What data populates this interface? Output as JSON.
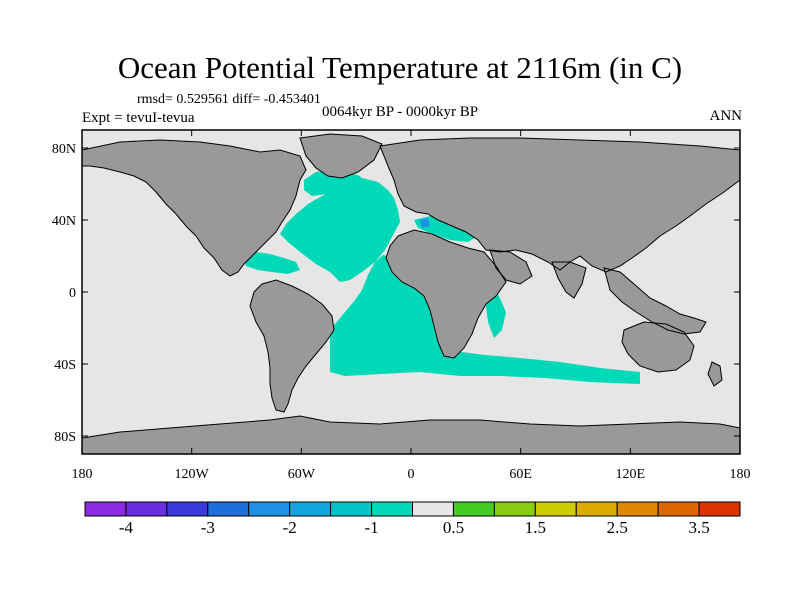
{
  "header": {
    "title": "Ocean Potential Temperature at 2116m (in C)",
    "stats": "rmsd= 0.529561 diff= -0.453401",
    "experiment": "Expt = tevuI-tevua",
    "period": "0064kyr BP - 0000kyr BP",
    "season": "ANN"
  },
  "axes": {
    "lon_range": [
      -180,
      180
    ],
    "lat_range": [
      -90,
      90
    ],
    "lon_ticks": [
      {
        "value": -180,
        "label": "180"
      },
      {
        "value": -120,
        "label": "120W"
      },
      {
        "value": -60,
        "label": "60W"
      },
      {
        "value": 0,
        "label": "0"
      },
      {
        "value": 60,
        "label": "60E"
      },
      {
        "value": 120,
        "label": "120E"
      },
      {
        "value": 180,
        "label": "180"
      }
    ],
    "lat_ticks": [
      {
        "value": 80,
        "label": "80N"
      },
      {
        "value": 40,
        "label": "40N"
      },
      {
        "value": 0,
        "label": "0"
      },
      {
        "value": -40,
        "label": "40S"
      },
      {
        "value": -80,
        "label": "80S"
      }
    ]
  },
  "colors": {
    "land": "#999999",
    "ocean_near_zero": "#e6e6e6",
    "anomaly_minus_half": "#00d9b7",
    "anomaly_minus_one": "#00c4c4",
    "anomaly_minus_two": "#1e90e6",
    "coast": "#000000"
  },
  "colorbar": {
    "colors": [
      "#8a2be2",
      "#6a2ee0",
      "#3a3adc",
      "#1e6edc",
      "#1e90e6",
      "#10a8dc",
      "#00c4c4",
      "#00d9b7",
      "#e6e6e6",
      "#44cc22",
      "#88cc11",
      "#cccc00",
      "#ddaa00",
      "#dd8800",
      "#dd6600",
      "#dd3300"
    ],
    "labels": [
      {
        "index": 1,
        "text": "-4"
      },
      {
        "index": 3,
        "text": "-3"
      },
      {
        "index": 5,
        "text": "-2"
      },
      {
        "index": 7,
        "text": "-1"
      },
      {
        "index": 9,
        "text": "0.5"
      },
      {
        "index": 11,
        "text": "1.5"
      },
      {
        "index": 13,
        "text": "2.5"
      },
      {
        "index": 15,
        "text": "3.5"
      }
    ]
  }
}
